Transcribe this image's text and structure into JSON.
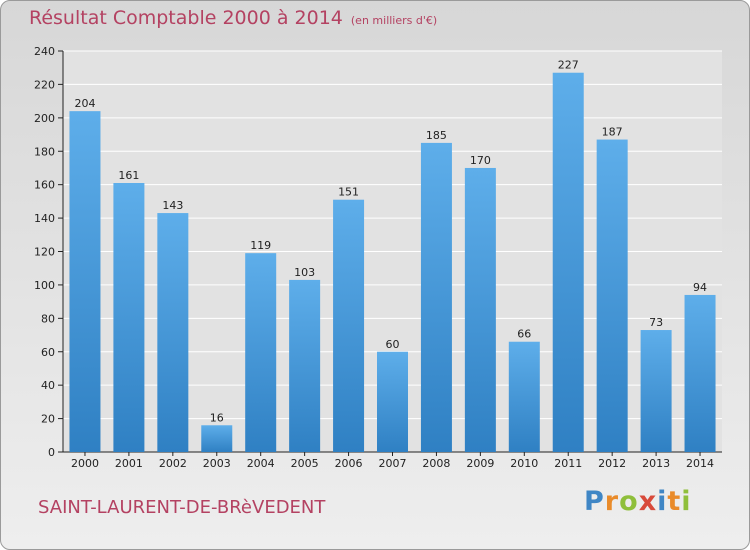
{
  "header": {
    "title": "Résultat Comptable 2000 à 2014",
    "unit": "(en milliers d'€)"
  },
  "footer": {
    "commune": "SAINT-LAURENT-DE-BRèVEDENT",
    "logo": "Proxiti"
  },
  "colors": {
    "title": "#b44262",
    "bar_top": "#5eaeea",
    "bar_bottom": "#2f80c3",
    "plot_bg": "#e2e2e2",
    "grid": "#ffffff"
  },
  "chart_data": {
    "type": "bar",
    "title": "Résultat Comptable 2000 à 2014",
    "subtitle": "(en milliers d'€)",
    "xlabel": "",
    "ylabel": "",
    "ylim": [
      0,
      240
    ],
    "yticks": [
      0,
      20,
      40,
      60,
      80,
      100,
      120,
      140,
      160,
      180,
      200,
      220,
      240
    ],
    "grid": true,
    "categories": [
      "2000",
      "2001",
      "2002",
      "2003",
      "2004",
      "2005",
      "2006",
      "2007",
      "2008",
      "2009",
      "2010",
      "2011",
      "2012",
      "2013",
      "2014"
    ],
    "values": [
      204,
      161,
      143,
      16,
      119,
      103,
      151,
      60,
      185,
      170,
      66,
      227,
      187,
      73,
      94
    ]
  }
}
